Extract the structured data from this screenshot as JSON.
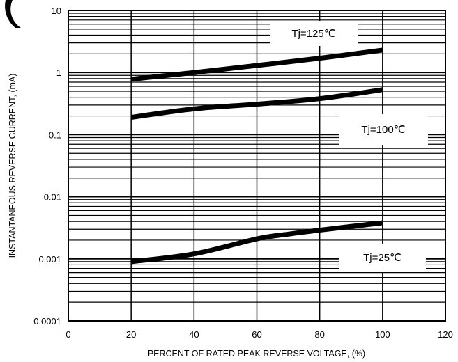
{
  "chart_data": {
    "type": "line",
    "xlabel": "PERCENT OF RATED PEAK REVERSE VOLTAGE, (%)",
    "ylabel": "INSTANTANEOUS REVERSE CURRENT, (mA)",
    "xlim": [
      0,
      120
    ],
    "ylim": [
      0.0001,
      10
    ],
    "y_scale": "log",
    "grid": true,
    "x_ticks": [
      "0",
      "20",
      "40",
      "60",
      "80",
      "100",
      "120"
    ],
    "y_ticks": [
      "0.0001",
      "0.001",
      "0.01",
      "0.1",
      "1",
      "10"
    ],
    "series": [
      {
        "name": "Tj=125℃",
        "x": [
          20,
          40,
          60,
          80,
          100
        ],
        "y": [
          0.78,
          1.0,
          1.3,
          1.7,
          2.3
        ]
      },
      {
        "name": "Tj=100℃",
        "x": [
          20,
          40,
          60,
          80,
          100
        ],
        "y": [
          0.19,
          0.26,
          0.31,
          0.38,
          0.53
        ]
      },
      {
        "name": "Tj=25℃",
        "x": [
          20,
          40,
          60,
          70,
          80,
          100
        ],
        "y": [
          0.0009,
          0.0012,
          0.0021,
          0.0025,
          0.0029,
          0.0038
        ]
      }
    ]
  }
}
